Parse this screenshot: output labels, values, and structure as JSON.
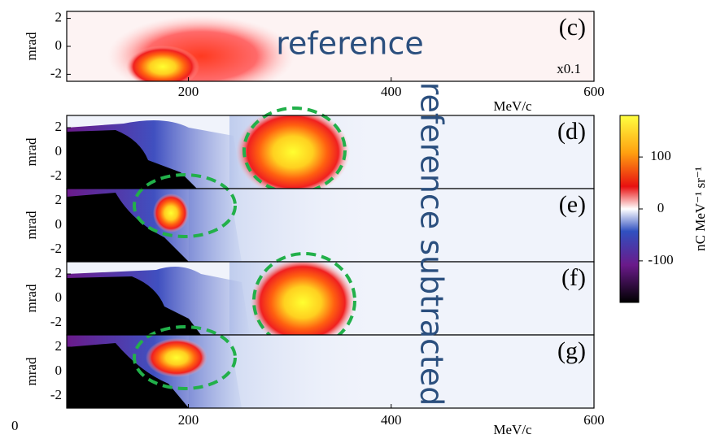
{
  "chart_data": {
    "type": "heatmap",
    "panels": [
      {
        "label": "(c)",
        "annotation": "reference",
        "scale_note": "x0.1",
        "ylim": [
          -2.5,
          2.5
        ]
      },
      {
        "label": "(d)",
        "ylim": [
          -3,
          3
        ]
      },
      {
        "label": "(e)",
        "ylim": [
          -3,
          3
        ]
      },
      {
        "label": "(f)",
        "ylim": [
          -3,
          3
        ]
      },
      {
        "label": "(g)",
        "ylim": [
          -3,
          3
        ]
      }
    ],
    "annotation": "reference subtracted",
    "corner_label": "0",
    "xlabel": "MeV/c",
    "xlim": [
      80,
      600
    ],
    "xticks": [
      200,
      400,
      600
    ],
    "ylabel": "mrad",
    "yticks": [
      -2,
      0,
      2
    ],
    "colorbar": {
      "label": "nC MeV⁻¹ sr⁻¹",
      "lim": [
        -180,
        180
      ],
      "ticks": [
        100,
        0,
        -100
      ]
    }
  }
}
